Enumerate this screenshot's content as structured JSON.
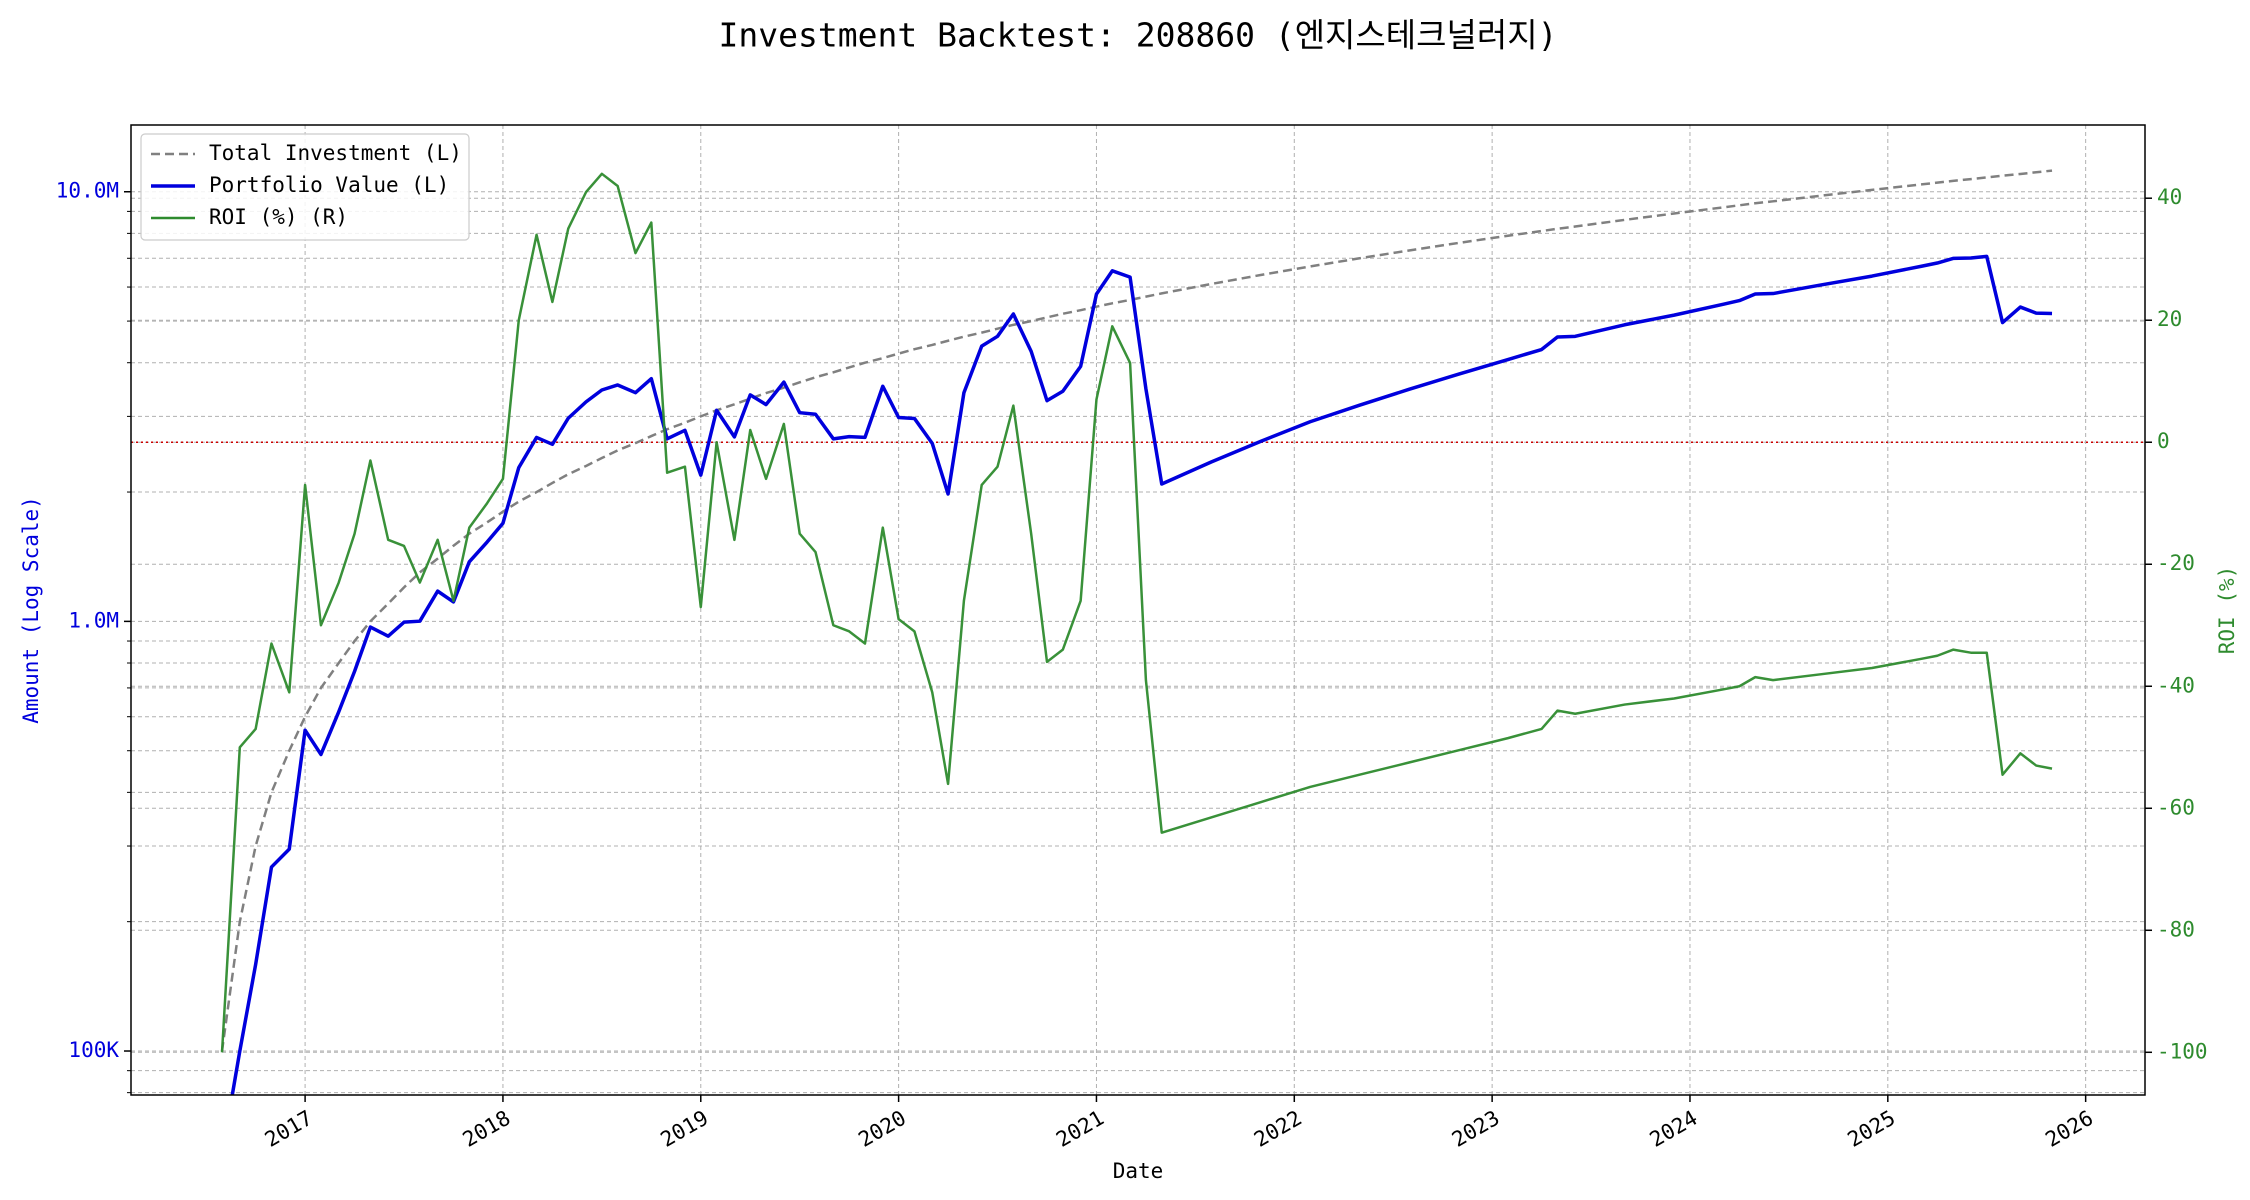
{
  "chart_data": {
    "type": "line",
    "title": "Investment Backtest: 208860 (엔지스테크널러지)",
    "xlabel": "Date",
    "ylabel": "Amount (Log Scale)",
    "y2label": "ROI (%)",
    "x": [
      2016.58,
      2016.67,
      2016.75,
      2016.83,
      2016.92,
      2017.0,
      2017.08,
      2017.17,
      2017.25,
      2017.33,
      2017.42,
      2017.5,
      2017.58,
      2017.67,
      2017.75,
      2017.83,
      2017.92,
      2018.0,
      2018.08,
      2018.17,
      2018.25,
      2018.33,
      2018.42,
      2018.5,
      2018.58,
      2018.67,
      2018.75,
      2018.83,
      2018.92,
      2019.0,
      2019.08,
      2019.17,
      2019.25,
      2019.33,
      2019.42,
      2019.5,
      2019.58,
      2019.67,
      2019.75,
      2019.83,
      2019.92,
      2020.0,
      2020.08,
      2020.17,
      2020.25,
      2020.33,
      2020.42,
      2020.5,
      2020.58,
      2020.67,
      2020.75,
      2020.83,
      2020.92,
      2021.0,
      2021.08,
      2021.17,
      2021.25,
      2021.33,
      2021.58,
      2021.83,
      2022.08,
      2022.33,
      2022.58,
      2022.83,
      2023.08,
      2023.25,
      2023.33,
      2023.42,
      2023.67,
      2023.92,
      2024.17,
      2024.25,
      2024.33,
      2024.42,
      2024.67,
      2024.92,
      2025.17,
      2025.25,
      2025.33,
      2025.42,
      2025.5,
      2025.58,
      2025.67,
      2025.75,
      2025.83
    ],
    "series": [
      {
        "name": "Total Investment (L)",
        "color": "#808080",
        "axis": "y",
        "dash": true,
        "width": 2.5,
        "values": [
          100000,
          200000,
          300000,
          400000,
          500000,
          600000,
          700000,
          800000,
          900000,
          1000000,
          1100000,
          1200000,
          1300000,
          1400000,
          1500000,
          1600000,
          1700000,
          1800000,
          1900000,
          2000000,
          2100000,
          2200000,
          2300000,
          2400000,
          2500000,
          2600000,
          2700000,
          2800000,
          2900000,
          3000000,
          3100000,
          3200000,
          3300000,
          3400000,
          3500000,
          3600000,
          3700000,
          3800000,
          3900000,
          4000000,
          4100000,
          4200000,
          4300000,
          4400000,
          4500000,
          4600000,
          4700000,
          4800000,
          4900000,
          5000000,
          5100000,
          5200000,
          5300000,
          5400000,
          5500000,
          5600000,
          5700000,
          5800000,
          6100000,
          6400000,
          6700000,
          7000000,
          7300000,
          7600000,
          7900000,
          8100000,
          8200000,
          8300000,
          8600000,
          8900000,
          9200000,
          9300000,
          9400000,
          9500000,
          9800000,
          10100000,
          10400000,
          10500000,
          10600000,
          10700000,
          10800000,
          10900000,
          11000000,
          11100000,
          11200000
        ]
      },
      {
        "name": "Portfolio Value (L)",
        "color": "#0000dd",
        "axis": "y",
        "dash": false,
        "width": 3.5,
        "values": [
          0,
          100000,
          159000,
          268000,
          295000,
          558000,
          490000,
          616000,
          765000,
          970000,
          924000,
          996000,
          1001000,
          1176000,
          1110000,
          1376000,
          1530000,
          1692000,
          2280000,
          2680000,
          2583000,
          2970000,
          3243000,
          3456000,
          3550000,
          3406000,
          3672000,
          2660000,
          2784000,
          2190000,
          3100000,
          2688000,
          3366000,
          3196000,
          3605000,
          3060000,
          3034000,
          2660000,
          2691000,
          2680000,
          3526000,
          2982000,
          2967000,
          2596000,
          1980000,
          3404000,
          4371000,
          4608000,
          5194000,
          4250000,
          3264000,
          3432000,
          3922000,
          5778000,
          6545000,
          6328000,
          3477000,
          2088000,
          2349000,
          2624000,
          2915000,
          3185000,
          3468000,
          3762000,
          4069000,
          4293000,
          4592000,
          4607000,
          4902000,
          5162000,
          5474000,
          5580000,
          5781000,
          5795000,
          6076000,
          6363000,
          6708000,
          6825000,
          6996000,
          7009000,
          7074000,
          4960000,
          5390000,
          5217000,
          5208000
        ]
      },
      {
        "name": "ROI (%) (R)",
        "color": "#2e8b2e",
        "axis": "y2",
        "dash": false,
        "width": 2.5,
        "values": [
          -100,
          -50,
          -47,
          -33,
          -41,
          -7,
          -30,
          -23,
          -15,
          -3,
          -16,
          -17,
          -23,
          -16,
          -26,
          -14,
          -10,
          -6,
          20,
          34,
          23,
          35,
          41,
          44,
          42,
          31,
          36,
          -5,
          -4,
          -27,
          0,
          -16,
          2,
          -6,
          3,
          -15,
          -18,
          -30,
          -31,
          -33,
          -14,
          -29,
          -31,
          -41,
          -56,
          -26,
          -7,
          -4,
          6,
          -15,
          -36,
          -34,
          -26,
          7,
          19,
          13,
          -39,
          -64,
          -61.5,
          -59,
          -56.5,
          -54.5,
          -52.5,
          -50.5,
          -48.5,
          -47,
          -44,
          -44.5,
          -43,
          -42,
          -40.5,
          -40,
          -38.5,
          -39,
          -38,
          -37,
          -35.5,
          -35,
          -34,
          -34.5,
          -34.5,
          -54.5,
          -51,
          -53,
          -53.5
        ]
      }
    ],
    "reference_line": {
      "value": 0,
      "axis": "y2",
      "color": "#cc0000"
    },
    "log_y": true,
    "xlim": [
      2016.12,
      2026.3
    ],
    "xticks": [
      2017,
      2018,
      2019,
      2020,
      2021,
      2022,
      2023,
      2024,
      2025,
      2026
    ],
    "ylim": [
      79000,
      14300000
    ],
    "yticks": [
      {
        "value": 100000,
        "label": "100K"
      },
      {
        "value": 1000000,
        "label": "1.0M"
      },
      {
        "value": 10000000,
        "label": "10.0M"
      }
    ],
    "yminorticks": [
      80000,
      90000,
      200000,
      300000,
      400000,
      500000,
      600000,
      700000,
      800000,
      900000,
      2000000,
      3000000,
      4000000,
      5000000,
      6000000,
      7000000,
      8000000,
      9000000
    ],
    "y2lim": [
      -107,
      52
    ],
    "y2ticks": [
      -100,
      -80,
      -60,
      -40,
      -20,
      0,
      20,
      40
    ],
    "ytick_color": "#0000dd",
    "y2tick_color": "#2e8b2e",
    "grid": true,
    "legend": "upper left"
  }
}
